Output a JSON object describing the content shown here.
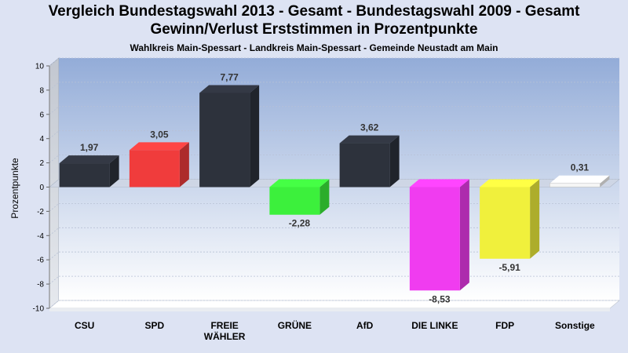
{
  "chart_data": {
    "type": "bar",
    "title": "Vergleich Bundestagswahl 2013 - Gesamt - Bundestagswahl 2009 - Gesamt",
    "title2": "Gewinn/Verlust Erststimmen in Prozentpunkte",
    "subtitle": "Wahlkreis Main-Spessart - Landkreis Main-Spessart - Gemeinde Neustadt am Main",
    "ylabel": "Prozentpunkte",
    "ylim": [
      -10,
      10
    ],
    "yticks": [
      "10",
      "8",
      "6",
      "4",
      "2",
      "0",
      "-2",
      "-4",
      "-6",
      "-8",
      "-10"
    ],
    "grid": true,
    "categories": [
      {
        "lines": [
          "CSU"
        ]
      },
      {
        "lines": [
          "SPD"
        ]
      },
      {
        "lines": [
          "FREIE",
          "WÄHLER"
        ]
      },
      {
        "lines": [
          "GRÜNE"
        ]
      },
      {
        "lines": [
          "AfD"
        ]
      },
      {
        "lines": [
          "DIE LINKE"
        ]
      },
      {
        "lines": [
          "FDP"
        ]
      },
      {
        "lines": [
          "Sonstige"
        ]
      }
    ],
    "values": [
      1.97,
      3.05,
      7.77,
      -2.28,
      3.62,
      -8.53,
      -5.91,
      0.31
    ],
    "labels": [
      "1,97",
      "3,05",
      "7,77",
      "-2,28",
      "3,62",
      "-8,53",
      "-5,91",
      "0,31"
    ],
    "colors": [
      "#2d323c",
      "#f03c3c",
      "#2d323c",
      "#3cf03c",
      "#2d323c",
      "#f03cf0",
      "#f0f03c",
      "#f5f5f5"
    ]
  }
}
